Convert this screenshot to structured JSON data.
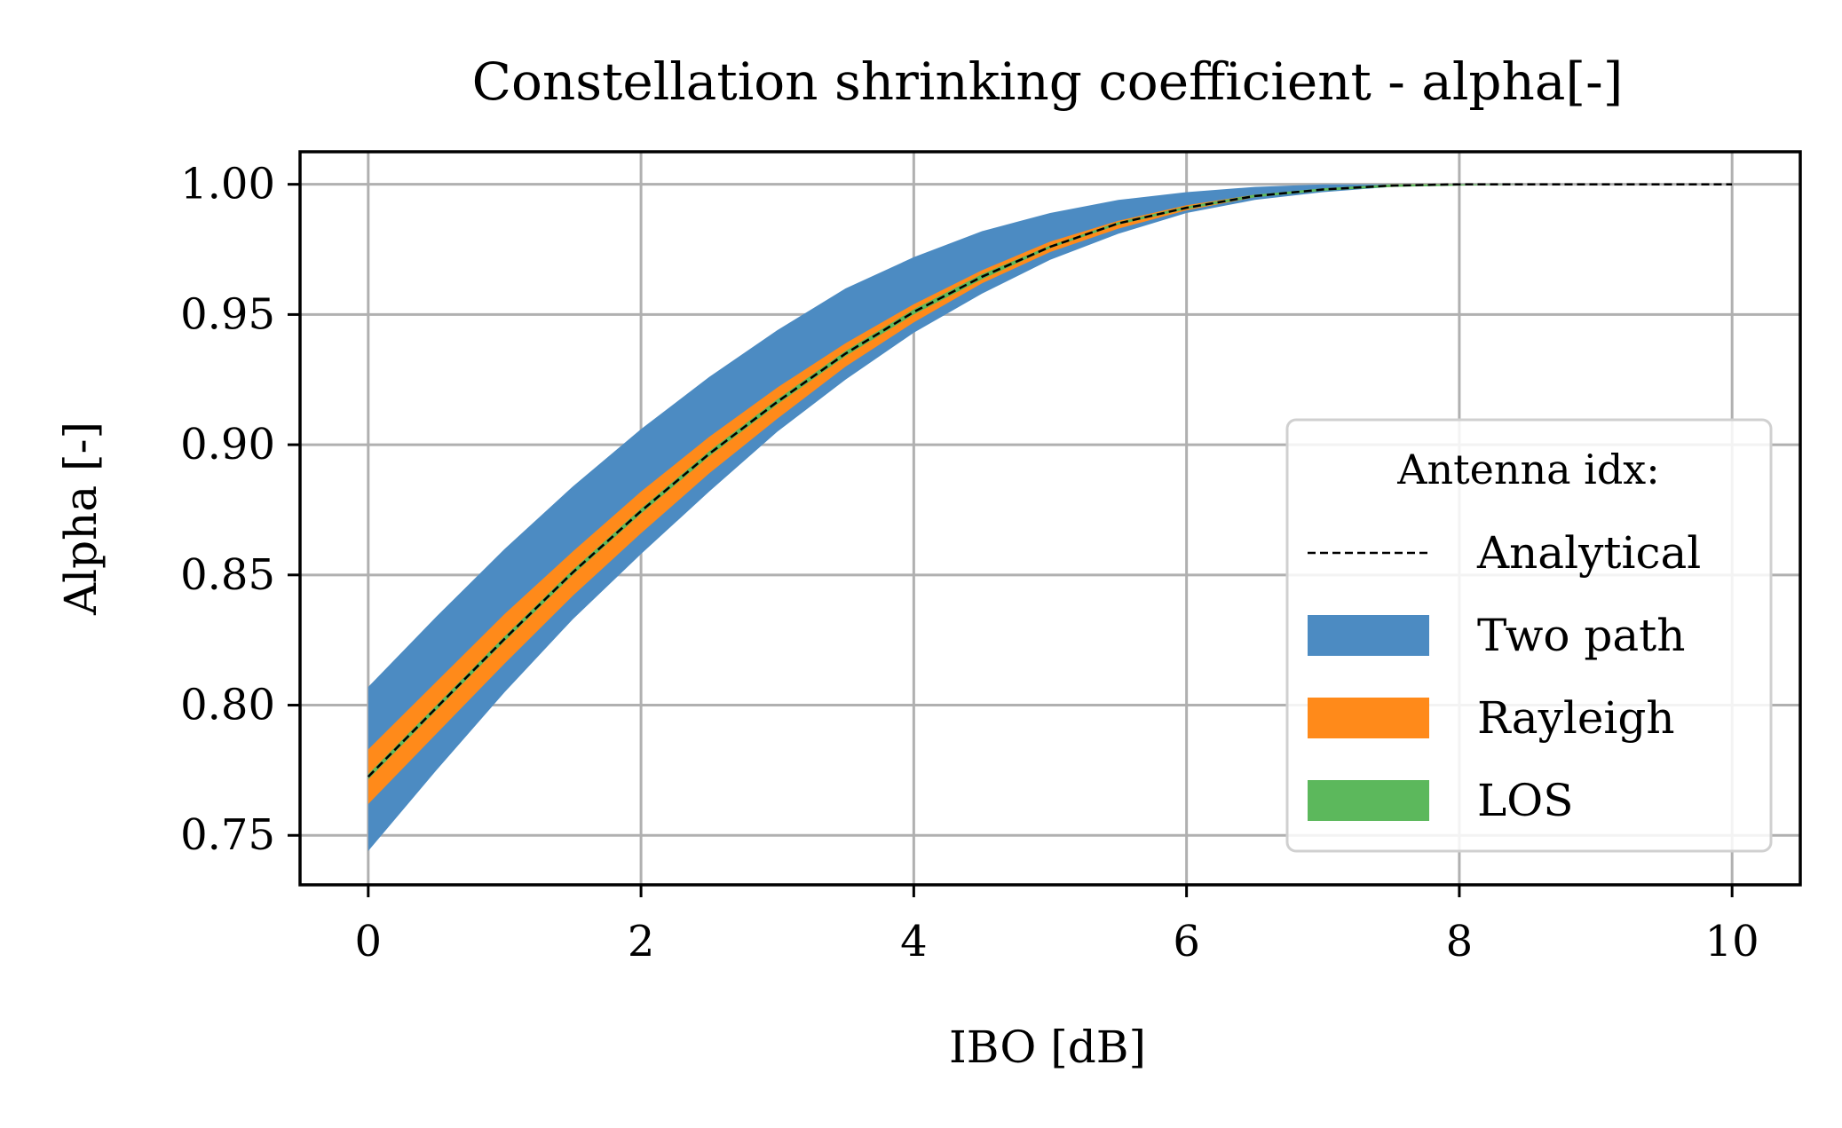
{
  "chart_data": {
    "type": "area",
    "title": "Constellation shrinking coefficient - alpha[-]",
    "xlabel": "IBO [dB]",
    "ylabel": "Alpha [-]",
    "xlim": [
      -0.5,
      10.5
    ],
    "ylim": [
      0.731,
      1.0125
    ],
    "grid": true,
    "xticks": [
      0,
      2,
      4,
      6,
      8,
      10
    ],
    "xtick_labels": [
      "0",
      "2",
      "4",
      "6",
      "8",
      "10"
    ],
    "yticks": [
      0.75,
      0.8,
      0.85,
      0.9,
      0.95,
      1.0
    ],
    "ytick_labels": [
      "0.75",
      "0.80",
      "0.85",
      "0.90",
      "0.95",
      "1.00"
    ],
    "legend": {
      "title": "Antenna idx:",
      "placement": "center-right",
      "entries": [
        "Analytical",
        "Two path",
        "Rayleigh",
        "LOS"
      ]
    },
    "x": [
      0,
      0.5,
      1,
      1.5,
      2,
      2.5,
      3,
      3.5,
      4,
      4.5,
      5,
      5.5,
      6,
      6.5,
      7,
      7.5,
      8,
      8.5,
      9,
      9.5,
      10
    ],
    "series": [
      {
        "name": "Two path",
        "kind": "band",
        "color": "#4c8bc2",
        "lower": [
          0.744,
          0.775,
          0.805,
          0.833,
          0.858,
          0.882,
          0.905,
          0.925,
          0.943,
          0.958,
          0.971,
          0.981,
          0.989,
          0.994,
          0.997,
          0.999,
          1.0,
          1.0,
          1.0,
          1.0,
          1.0
        ],
        "upper": [
          0.807,
          0.834,
          0.86,
          0.884,
          0.906,
          0.926,
          0.944,
          0.96,
          0.972,
          0.982,
          0.989,
          0.994,
          0.997,
          0.999,
          1.0,
          1.0,
          1.0,
          1.0,
          1.0,
          1.0,
          1.0
        ]
      },
      {
        "name": "Rayleigh",
        "kind": "band",
        "color": "#ff8a1a",
        "lower": [
          0.762,
          0.789,
          0.816,
          0.842,
          0.866,
          0.889,
          0.91,
          0.93,
          0.947,
          0.962,
          0.974,
          0.983,
          0.99,
          0.995,
          0.998,
          0.999,
          1.0,
          1.0,
          1.0,
          1.0,
          1.0
        ],
        "upper": [
          0.783,
          0.809,
          0.835,
          0.859,
          0.882,
          0.903,
          0.922,
          0.939,
          0.954,
          0.967,
          0.978,
          0.986,
          0.992,
          0.996,
          0.998,
          1.0,
          1.0,
          1.0,
          1.0,
          1.0,
          1.0
        ]
      },
      {
        "name": "LOS",
        "kind": "band",
        "color": "#5cb85c",
        "lower": [
          0.7715,
          0.798,
          0.8245,
          0.85,
          0.8735,
          0.8955,
          0.9155,
          0.934,
          0.95,
          0.9635,
          0.9755,
          0.9845,
          0.9905,
          0.995,
          0.9975,
          0.999,
          0.9995,
          1.0,
          1.0,
          1.0,
          1.0
        ],
        "upper": [
          0.7735,
          0.8,
          0.8265,
          0.852,
          0.8755,
          0.8975,
          0.9175,
          0.936,
          0.952,
          0.9655,
          0.9765,
          0.9855,
          0.9915,
          0.996,
          0.9985,
          1.0,
          1.0,
          1.0,
          1.0,
          1.0,
          1.0
        ]
      },
      {
        "name": "Analytical",
        "kind": "line",
        "color": "#000000",
        "dash": "dashed",
        "values": [
          0.7725,
          0.799,
          0.8255,
          0.851,
          0.8745,
          0.8965,
          0.9165,
          0.935,
          0.951,
          0.9645,
          0.976,
          0.985,
          0.991,
          0.9955,
          0.998,
          0.9995,
          1.0,
          1.0,
          1.0,
          1.0,
          1.0
        ]
      }
    ]
  }
}
